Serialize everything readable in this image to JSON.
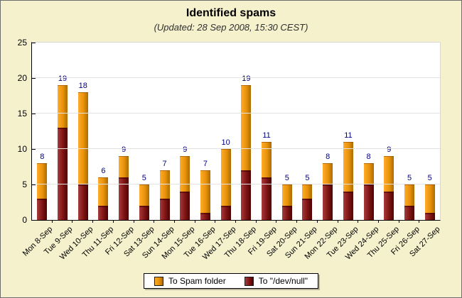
{
  "title": "Identified spams",
  "subtitle": "(Updated: 28 Sep 2008, 15:30 CEST)",
  "colors": {
    "background": "#f5f1cd",
    "plot_background": "#ffffff",
    "grid": "#e2e2e2",
    "spam_folder_bar": "#e8920a",
    "devnull_bar": "#7d1414",
    "value_label": "#000080"
  },
  "chart_data": {
    "type": "bar",
    "stacked": true,
    "title": "Identified spams",
    "subtitle": "(Updated: 28 Sep 2008, 15:30 CEST)",
    "categories": [
      "Mon 8-Sep",
      "Tue 9-Sep",
      "Wed 10-Sep",
      "Thu 11-Sep",
      "Fri 12-Sep",
      "Sat 13-Sep",
      "Sun 14-Sep",
      "Mon 15-Sep",
      "Tue 16-Sep",
      "Wed 17-Sep",
      "Thu 18-Sep",
      "Fri 19-Sep",
      "Sat 20-Sep",
      "Sun 21-Sep",
      "Mon 22-Sep",
      "Tue 23-Sep",
      "Wed 24-Sep",
      "Thu 25-Sep",
      "Fri 26-Sep",
      "Sat 27-Sep"
    ],
    "series": [
      {
        "name": "To Spam folder",
        "values": [
          5,
          6,
          13,
          4,
          3,
          3,
          4,
          5,
          6,
          8,
          12,
          5,
          3,
          2,
          3,
          7,
          3,
          5,
          3,
          4
        ]
      },
      {
        "name": "To \"/dev/null\"",
        "values": [
          3,
          13,
          5,
          2,
          6,
          2,
          3,
          4,
          1,
          2,
          7,
          6,
          2,
          3,
          5,
          4,
          5,
          4,
          2,
          1
        ]
      }
    ],
    "totals": [
      8,
      19,
      18,
      6,
      9,
      5,
      7,
      9,
      7,
      10,
      19,
      11,
      5,
      5,
      8,
      11,
      8,
      9,
      5,
      5
    ],
    "xlabel": "",
    "ylabel": "",
    "ylim": [
      0,
      25
    ],
    "yticks": [
      0,
      5,
      10,
      15,
      20,
      25
    ],
    "grid": true,
    "legend_position": "bottom"
  }
}
